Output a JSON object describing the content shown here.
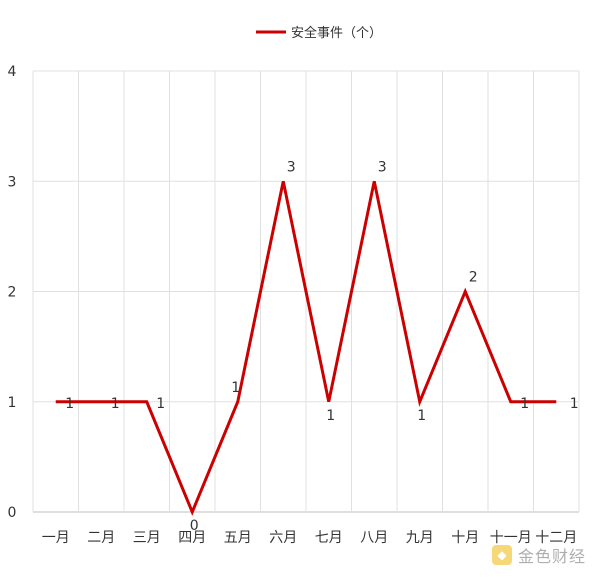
{
  "chart_data": {
    "type": "line",
    "categories": [
      "一月",
      "二月",
      "三月",
      "四月",
      "五月",
      "六月",
      "七月",
      "八月",
      "九月",
      "十月",
      "十一月",
      "十二月"
    ],
    "series": [
      {
        "name": "安全事件（个）",
        "color": "#cc0000",
        "values": [
          1,
          1,
          1,
          0,
          1,
          3,
          1,
          3,
          1,
          2,
          1,
          1
        ]
      }
    ],
    "ylim": [
      0,
      4
    ],
    "yticks": [
      0,
      1,
      2,
      3,
      4
    ],
    "grid": true,
    "legend": "top-center"
  },
  "watermark": {
    "text": "金色财经",
    "logo_glyph": "◆"
  }
}
